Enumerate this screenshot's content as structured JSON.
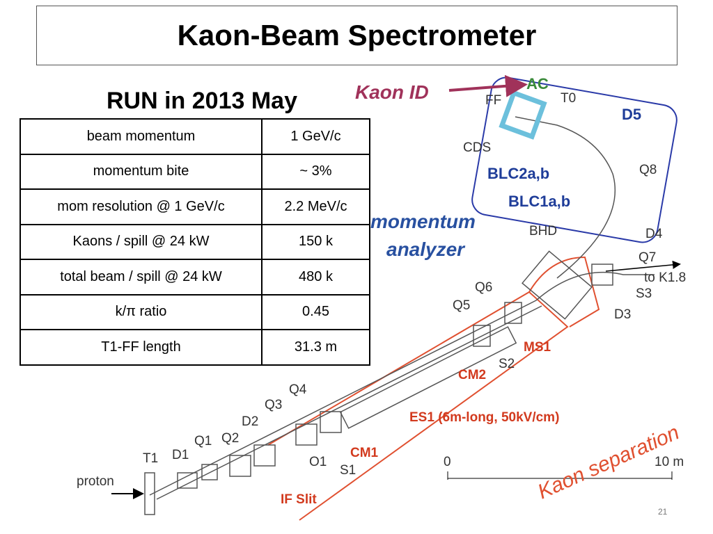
{
  "header": {
    "title": "Kaon-Beam Spectrometer"
  },
  "subtitle": "RUN in 2013 May",
  "table": {
    "rows": [
      [
        "beam momentum",
        "1 GeV/c"
      ],
      [
        "momentum bite",
        "~ 3%"
      ],
      [
        "mom resolution @ 1 GeV/c",
        "2.2 MeV/c"
      ],
      [
        "Kaons / spill @ 24 kW",
        "150 k"
      ],
      [
        "total beam / spill @ 24 kW",
        "480 k"
      ],
      [
        "k/π ratio",
        "0.45"
      ],
      [
        "T1-FF length",
        "31.3 m"
      ]
    ]
  },
  "diagram": {
    "labels": [
      "Kaon ID",
      "AC",
      "FF",
      "T0",
      "CDS",
      "D5",
      "BLC2a,b",
      "Q8",
      "BLC1a,b",
      "momentum",
      "analyzer",
      "BHD",
      "D4",
      "Q7",
      "to K1.8",
      "S3",
      "D3",
      "Q6",
      "Q5",
      "MS1",
      "S2",
      "CM2",
      "ES1 (6m-long, 50kV/cm)",
      "Q4",
      "Q3",
      "D2",
      "Q2",
      "Q1",
      "D1",
      "T1",
      "proton",
      "O1",
      "S1",
      "CM1",
      "IF Slit",
      "Kaon separation",
      "0",
      "10 m"
    ]
  },
  "page_number": "21"
}
